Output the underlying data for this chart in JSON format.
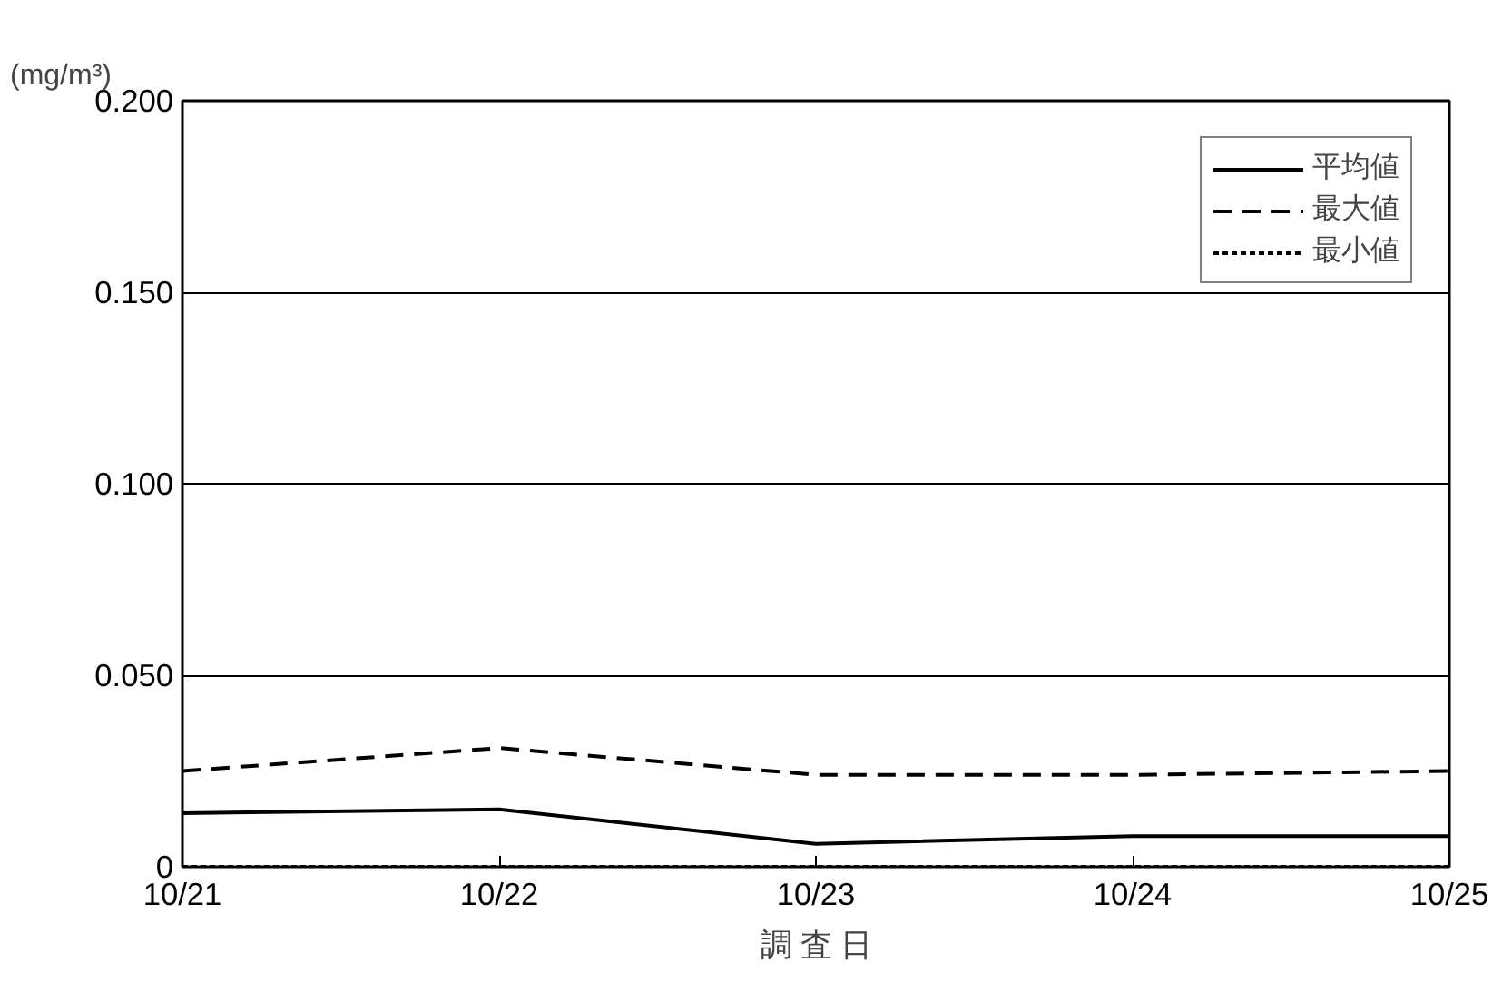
{
  "chart_data": {
    "type": "line",
    "xlabel": "調 査 日",
    "ylabel": "(mg/m³)",
    "categories": [
      "10/21",
      "10/22",
      "10/23",
      "10/24",
      "10/25"
    ],
    "series": [
      {
        "name": "平均値",
        "color": "#000000",
        "line_style": "solid",
        "values": [
          0.014,
          0.015,
          0.006,
          0.008,
          0.008
        ]
      },
      {
        "name": "最大値",
        "color": "#000000",
        "line_style": "dashed",
        "values": [
          0.025,
          0.031,
          0.024,
          0.024,
          0.025
        ]
      },
      {
        "name": "最小値",
        "color": "#000000",
        "line_style": "dotted",
        "values": [
          0,
          0,
          0,
          0,
          0
        ]
      }
    ],
    "ylim": [
      0,
      0.2
    ],
    "yticks": [
      0,
      {
        "value": 0.05,
        "label": "0.050"
      },
      {
        "value": 0.1,
        "label": "0.100"
      },
      {
        "value": 0.15,
        "label": "0.150"
      },
      {
        "value": 0.2,
        "label": "0.200"
      }
    ],
    "grid": "y",
    "legend": "top right",
    "marker": "none"
  }
}
